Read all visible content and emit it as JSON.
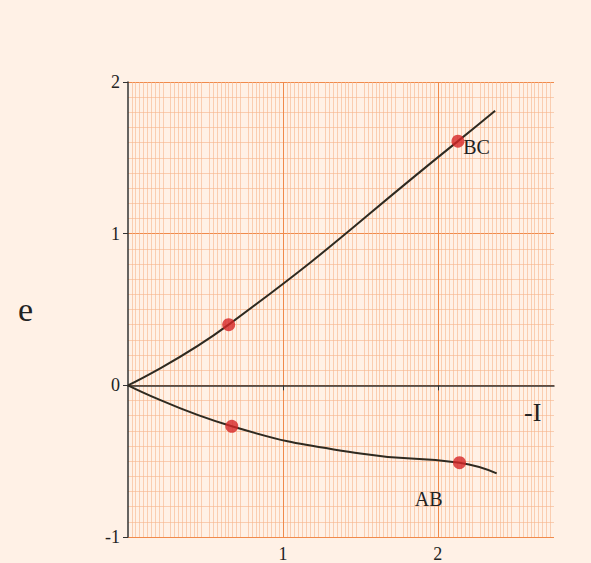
{
  "chart_data": {
    "type": "line",
    "x_label": "-I",
    "y_label": "e",
    "xlim": [
      0,
      2.75
    ],
    "xticks": [
      1,
      2
    ],
    "ylim": [
      -1,
      2
    ],
    "yticks": [
      -1,
      0,
      1,
      2
    ],
    "grid": true,
    "series": [
      {
        "name": "BC",
        "type": "line",
        "color": "#2f2a20",
        "marker": "none",
        "line_style": "solid",
        "x": [
          0,
          0.65,
          2.13,
          2.37
        ],
        "values": [
          0,
          0.4,
          1.61,
          1.81
        ]
      },
      {
        "name": "AB",
        "type": "line",
        "color": "#2f2a20",
        "marker": "none",
        "line_style": "solid",
        "x": [
          0,
          0.67,
          1.5,
          2.14,
          2.38
        ],
        "values": [
          0,
          -0.27,
          -0.45,
          -0.51,
          -0.58
        ]
      },
      {
        "type": "scatter",
        "color": "#d62728",
        "marker": "circle",
        "x": [
          0.65,
          2.13,
          0.67,
          2.14
        ],
        "values": [
          0.4,
          1.61,
          -0.27,
          -0.51
        ]
      }
    ]
  }
}
